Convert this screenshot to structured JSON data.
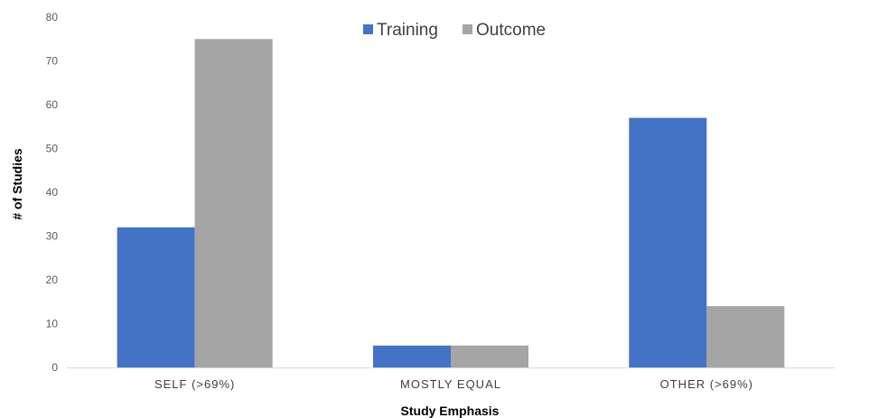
{
  "chart_data": {
    "type": "bar",
    "categories": [
      "SELF (>69%)",
      "MOSTLY EQUAL",
      "OTHER (>69%)"
    ],
    "series": [
      {
        "name": "Training",
        "values": [
          32,
          5,
          57
        ],
        "color": "#4472C4"
      },
      {
        "name": "Outcome",
        "values": [
          75,
          5,
          14
        ],
        "color": "#A5A5A5"
      }
    ],
    "xlabel": "Study Emphasis",
    "ylabel": "# of Studies",
    "ylim": [
      0,
      80
    ],
    "yticks": [
      0,
      10,
      20,
      30,
      40,
      50,
      60,
      70,
      80
    ],
    "grid": false,
    "legend": "top-center"
  }
}
